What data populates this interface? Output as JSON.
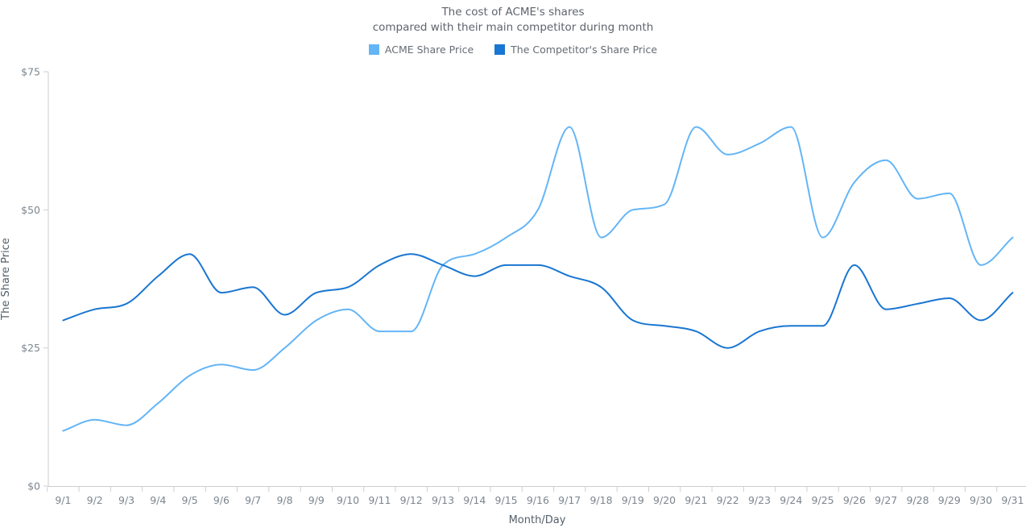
{
  "title": {
    "line1": "The cost of ACME's shares",
    "line2": "compared with their main competitor during month"
  },
  "legend": {
    "items": [
      {
        "label": "ACME Share Price"
      },
      {
        "label": "The Competitor's Share Price"
      }
    ]
  },
  "chart_data": {
    "type": "line",
    "interpolation": "spline",
    "title": "The cost of ACME's shares compared with their main competitor during month",
    "xlabel": "Month/Day",
    "ylabel": "The Share Price",
    "categories": [
      "9/1",
      "9/2",
      "9/3",
      "9/4",
      "9/5",
      "9/6",
      "9/7",
      "9/8",
      "9/9",
      "9/10",
      "9/11",
      "9/12",
      "9/13",
      "9/14",
      "9/15",
      "9/16",
      "9/17",
      "9/18",
      "9/19",
      "9/20",
      "9/21",
      "9/22",
      "9/23",
      "9/24",
      "9/25",
      "9/26",
      "9/27",
      "9/28",
      "9/29",
      "9/30",
      "9/31"
    ],
    "series": [
      {
        "name": "ACME Share Price",
        "color": "#64B5F6",
        "values": [
          10,
          12,
          11,
          15,
          20,
          22,
          21,
          25,
          30,
          32,
          28,
          28,
          40,
          42,
          45,
          50,
          65,
          45,
          50,
          51,
          65,
          60,
          62,
          65,
          45,
          55,
          59,
          52,
          53,
          40,
          45
        ]
      },
      {
        "name": "The Competitor's Share Price",
        "color": "#1976D2",
        "values": [
          30,
          32,
          33,
          38,
          42,
          35,
          36,
          31,
          35,
          36,
          40,
          42,
          40,
          38,
          40,
          40,
          38,
          36,
          30,
          29,
          28,
          25,
          28,
          29,
          29,
          40,
          32,
          33,
          34,
          30,
          35
        ]
      }
    ],
    "ylim": [
      0,
      75
    ],
    "y_tick_step": 25,
    "y_tick_prefix": "$",
    "y_tick_labels": [
      "$0",
      "$25",
      "$50",
      "$75"
    ],
    "grid": false,
    "legend_position": "top",
    "axis_color": "#CECECE",
    "tick_label_color": "#7C868E",
    "axis_title_color": "#545F69"
  }
}
